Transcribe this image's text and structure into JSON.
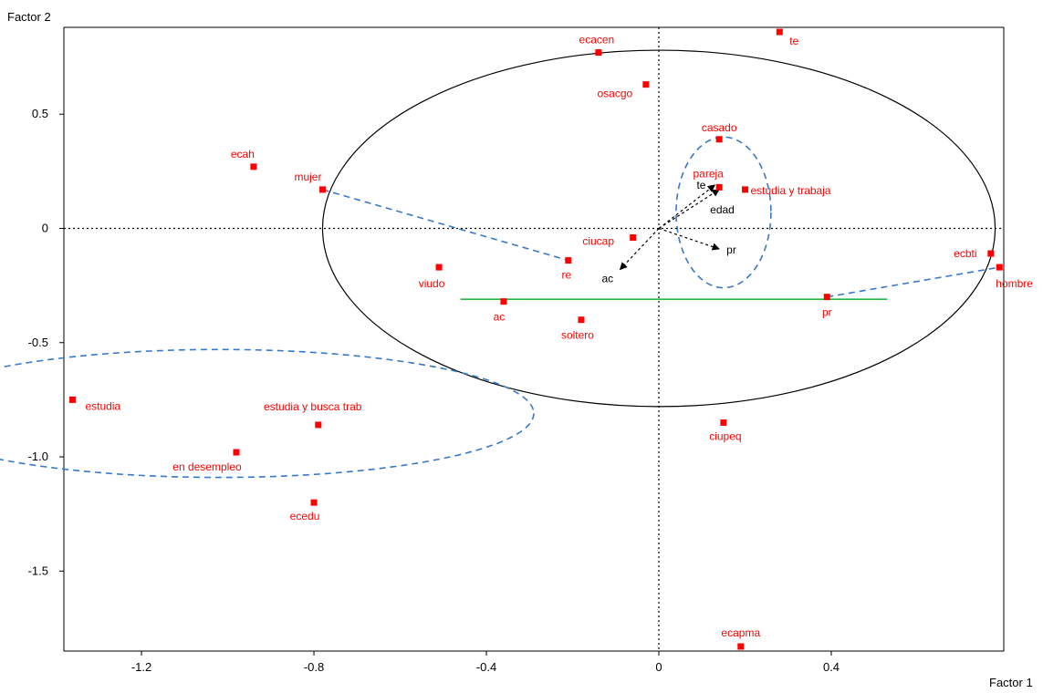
{
  "chart_data": {
    "type": "scatter",
    "title": "",
    "xlabel": "Factor 1",
    "ylabel": "Factor 2",
    "xlim": [
      -1.38,
      0.8
    ],
    "ylim": [
      -1.85,
      0.88
    ],
    "x_ticks": [
      {
        "value": -1.2,
        "label": "-1.2"
      },
      {
        "value": -0.8,
        "label": "-0.8"
      },
      {
        "value": -0.4,
        "label": "-0.4"
      },
      {
        "value": 0,
        "label": "0"
      },
      {
        "value": 0.4,
        "label": "0.4"
      }
    ],
    "y_ticks": [
      {
        "value": 0.5,
        "label": "0.5"
      },
      {
        "value": 0,
        "label": "0"
      },
      {
        "value": -0.5,
        "label": "-0.5"
      },
      {
        "value": -1,
        "label": "-1.0"
      },
      {
        "value": -1.5,
        "label": "-1.5"
      }
    ],
    "zero_lines": "dotted",
    "points": [
      {
        "label": "te",
        "x": 0.28,
        "y": 0.86
      },
      {
        "label": "ecacen",
        "x": -0.14,
        "y": 0.77
      },
      {
        "label": "osacgo",
        "x": -0.03,
        "y": 0.63
      },
      {
        "label": "casado",
        "x": 0.14,
        "y": 0.39
      },
      {
        "label": "ecah",
        "x": -0.94,
        "y": 0.27
      },
      {
        "label": "mujer",
        "x": -0.78,
        "y": 0.17
      },
      {
        "label": "pareja",
        "x": 0.14,
        "y": 0.18
      },
      {
        "label": "estudia y trabaja",
        "x": 0.2,
        "y": 0.17
      },
      {
        "label": "ciucap",
        "x": -0.06,
        "y": -0.04
      },
      {
        "label": "re",
        "x": -0.21,
        "y": -0.14
      },
      {
        "label": "viudo",
        "x": -0.51,
        "y": -0.17
      },
      {
        "label": "ac",
        "x": -0.36,
        "y": -0.32
      },
      {
        "label": "soltero",
        "x": -0.18,
        "y": -0.4
      },
      {
        "label": "pr",
        "x": 0.39,
        "y": -0.3
      },
      {
        "label": "ecbti",
        "x": 0.77,
        "y": -0.11
      },
      {
        "label": "hombre",
        "x": 0.79,
        "y": -0.17
      },
      {
        "label": "estudia",
        "x": -1.36,
        "y": -0.75
      },
      {
        "label": "estudia y busca trab",
        "x": -0.79,
        "y": -0.86
      },
      {
        "label": "en desempleo",
        "x": -0.98,
        "y": -0.98
      },
      {
        "label": "ecedu",
        "x": -0.8,
        "y": -1.2
      },
      {
        "label": "ciupeq",
        "x": 0.15,
        "y": -0.85
      },
      {
        "label": "ecapma",
        "x": 0.19,
        "y": -1.83
      }
    ],
    "vectors": [
      {
        "label": "te",
        "x": 0.13,
        "y": 0.19
      },
      {
        "label": "edad",
        "x": 0.14,
        "y": 0.17
      },
      {
        "label": "pr",
        "x": 0.14,
        "y": -0.09
      },
      {
        "label": "ac",
        "x": -0.09,
        "y": -0.18
      }
    ],
    "annotations": {
      "big_ellipse": {
        "cx": 0.0,
        "cy": 0.0,
        "rx": 0.78,
        "ry": 0.78,
        "stroke": "#000000"
      },
      "dashed_ellipses": [
        {
          "cx": 0.15,
          "cy": 0.07,
          "rx": 0.11,
          "ry": 0.33
        },
        {
          "cx": -1.02,
          "cy": -0.81,
          "rx": 0.73,
          "ry": 0.28
        }
      ],
      "dashed_lines": [
        {
          "from": [
            -0.78,
            0.17
          ],
          "to": [
            -0.21,
            -0.14
          ]
        },
        {
          "from": [
            0.39,
            -0.3
          ],
          "to": [
            0.79,
            -0.17
          ]
        }
      ],
      "green_line": {
        "y": -0.31,
        "x_from": -0.46,
        "x_to": 0.53,
        "stroke": "#22bb44"
      }
    },
    "colors": {
      "points": "#ff0000",
      "labels": "#ff0000",
      "dashed": "#3a78c8",
      "green": "#22bb44",
      "axis": "#000000"
    }
  }
}
